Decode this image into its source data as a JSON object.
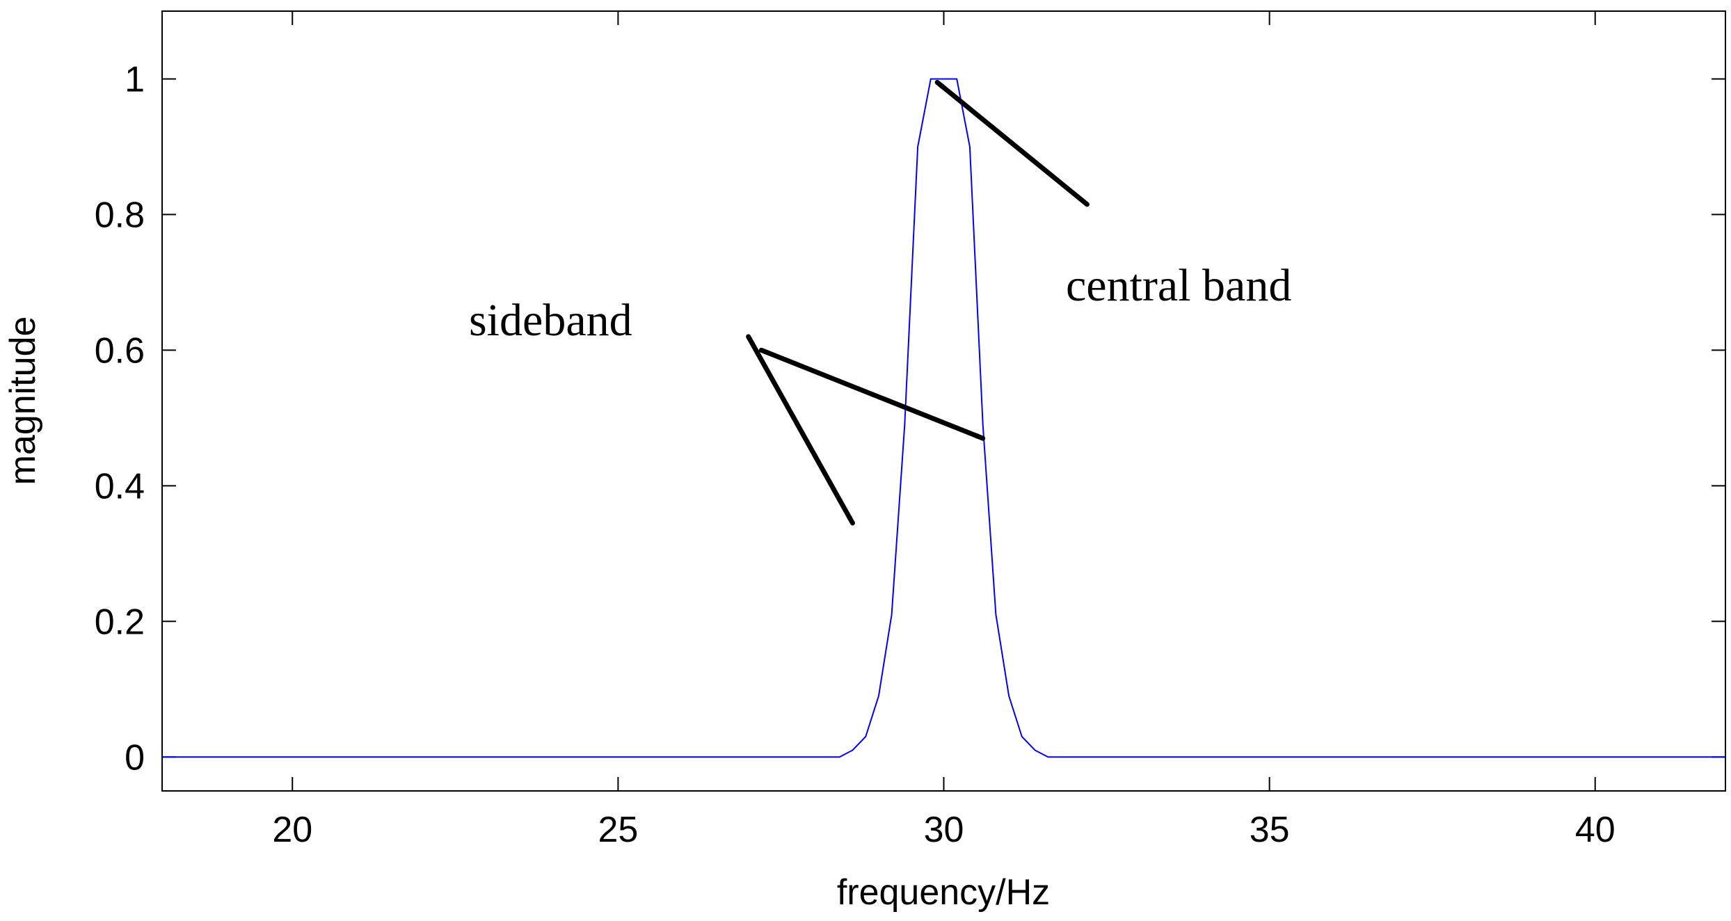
{
  "chart_data": {
    "type": "line",
    "title": "",
    "xlabel": "frequency/Hz",
    "ylabel": "magnitude",
    "xlim": [
      18,
      42
    ],
    "ylim": [
      -0.05,
      1.1
    ],
    "grid": false,
    "x_ticks": [
      20,
      25,
      30,
      35,
      40
    ],
    "y_ticks": [
      0,
      0.2,
      0.4,
      0.6,
      0.8,
      1
    ],
    "x_tick_labels": [
      "20",
      "25",
      "30",
      "35",
      "40"
    ],
    "y_tick_labels": [
      "0",
      "0.2",
      "0.4",
      "0.6",
      "0.8",
      "1"
    ],
    "series": [
      {
        "color": "#0000ff",
        "x": [
          18,
          28.4,
          28.6,
          28.8,
          29.0,
          29.2,
          29.4,
          29.6,
          29.8,
          30.0,
          30.2,
          30.4,
          30.6,
          30.8,
          31.0,
          31.2,
          31.4,
          31.6,
          42
        ],
        "y": [
          0,
          0,
          0.01,
          0.03,
          0.09,
          0.21,
          0.49,
          0.9,
          1.0,
          1.0,
          1.0,
          0.9,
          0.49,
          0.21,
          0.09,
          0.03,
          0.01,
          0,
          0
        ]
      }
    ],
    "annotations": [
      {
        "text": "central band",
        "arrows": [
          {
            "from": [
              32.2,
              0.815
            ],
            "to": [
              29.9,
              0.995
            ]
          }
        ]
      },
      {
        "text": "sideband",
        "arrows": [
          {
            "from": [
              27.0,
              0.62
            ],
            "to": [
              28.6,
              0.345
            ]
          },
          {
            "from": [
              27.2,
              0.6
            ],
            "to": [
              30.6,
              0.47
            ]
          }
        ]
      }
    ]
  }
}
